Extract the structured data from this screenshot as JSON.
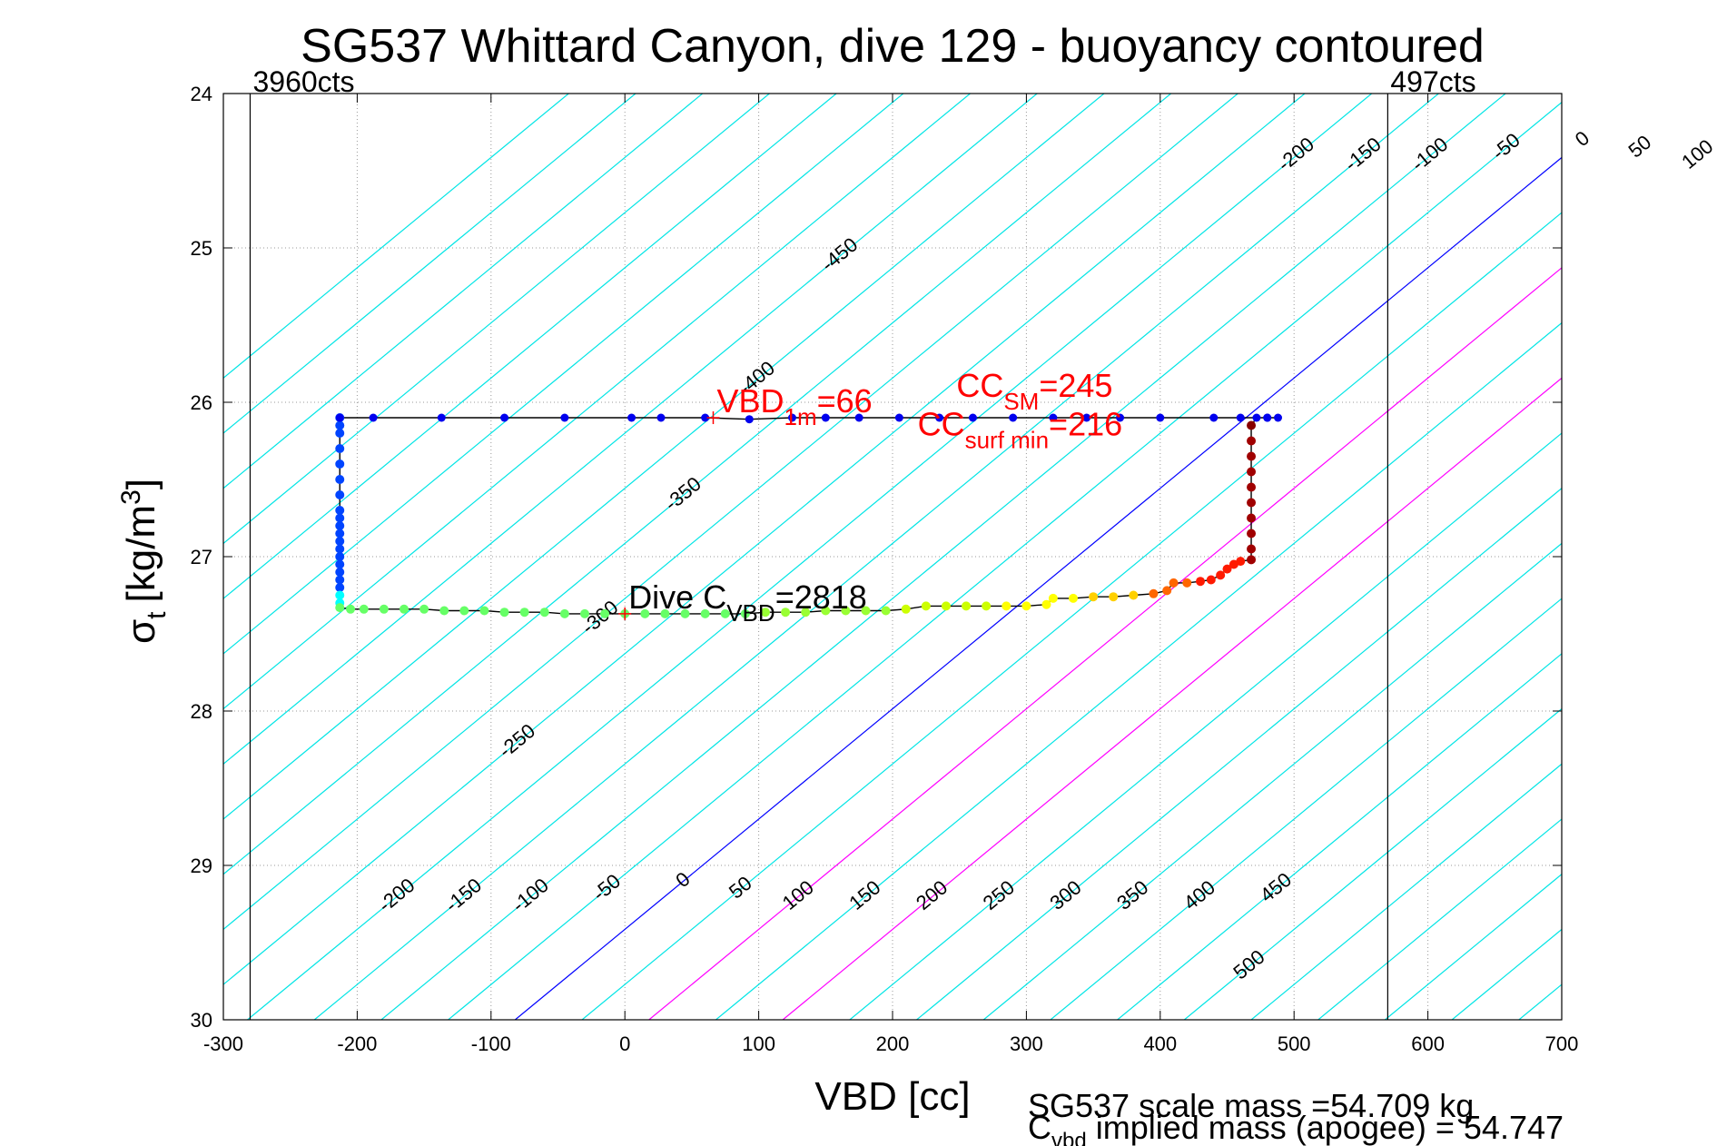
{
  "chart_data": {
    "type": "scatter",
    "title": "SG537 Whittard Canyon, dive 129 - buoyancy contoured",
    "xlabel": "VBD [cc]",
    "ylabel": {
      "sigma": "σ",
      "sub": "t",
      "units": "[kg/m",
      "sup": "3",
      "close": "]"
    },
    "xlim": [
      -300,
      700
    ],
    "ylim": [
      24,
      30
    ],
    "y_reversed": true,
    "grid": true,
    "xticks": [
      -300,
      -200,
      -100,
      0,
      100,
      200,
      300,
      400,
      500,
      600,
      700
    ],
    "yticks": [
      24,
      25,
      26,
      27,
      28,
      29,
      30
    ],
    "vlines": [
      {
        "x": -280,
        "label": "3960cts"
      },
      {
        "x": 570,
        "label": "497cts"
      }
    ],
    "contours": {
      "slope_cc_per_sigma": -140,
      "levels": [
        -450,
        -400,
        -350,
        -300,
        -250,
        -200,
        -150,
        -100,
        -50,
        0,
        50,
        100,
        150,
        200,
        250,
        300,
        350,
        400,
        450,
        500
      ],
      "zero_x_at_sigma30": -82,
      "colors": {
        "default": "#00e5e5",
        "zero": "#0000ff",
        "highlight": "#ff00ff"
      },
      "highlight_levels": [
        100,
        200
      ],
      "top_labels": [
        {
          "level": -200,
          "sigma": 24.4
        },
        {
          "level": -150,
          "sigma": 24.4
        },
        {
          "level": -100,
          "sigma": 24.4
        },
        {
          "level": -50,
          "sigma": 24.35
        },
        {
          "level": 0,
          "sigma": 24.3
        },
        {
          "level": 50,
          "sigma": 24.35
        },
        {
          "level": 100,
          "sigma": 24.4
        },
        {
          "level": 150,
          "sigma": 24.4
        },
        {
          "level": 200,
          "sigma": 24.4
        },
        {
          "level": 250,
          "sigma": 24.4
        },
        {
          "level": 300,
          "sigma": 24.4
        },
        {
          "level": 350,
          "sigma": 24.4
        },
        {
          "level": 400,
          "sigma": 24.4
        },
        {
          "level": 450,
          "sigma": 24.4
        },
        {
          "level": 500,
          "sigma": 24.85
        }
      ],
      "left_labels": [
        {
          "level": -450,
          "sigma": 25.05
        },
        {
          "level": -400,
          "sigma": 25.85
        },
        {
          "level": -350,
          "sigma": 26.6
        },
        {
          "level": -300,
          "sigma": 27.4
        },
        {
          "level": -250,
          "sigma": 28.2
        }
      ],
      "bottom_labels": [
        {
          "level": -200,
          "sigma": 29.2
        },
        {
          "level": -150,
          "sigma": 29.2
        },
        {
          "level": -100,
          "sigma": 29.2
        },
        {
          "level": -50,
          "sigma": 29.15
        },
        {
          "level": 0,
          "sigma": 29.1
        },
        {
          "level": 50,
          "sigma": 29.15
        },
        {
          "level": 100,
          "sigma": 29.2
        },
        {
          "level": 150,
          "sigma": 29.2
        },
        {
          "level": 200,
          "sigma": 29.2
        },
        {
          "level": 250,
          "sigma": 29.2
        },
        {
          "level": 300,
          "sigma": 29.2
        },
        {
          "level": 350,
          "sigma": 29.2
        },
        {
          "level": 400,
          "sigma": 29.2
        },
        {
          "level": 450,
          "sigma": 29.15
        },
        {
          "level": 500,
          "sigma": 29.65
        }
      ]
    },
    "series": [
      {
        "points": [
          [
            -213,
            26.1
          ],
          [
            -213,
            26.15
          ],
          [
            -213,
            26.2
          ],
          [
            -213,
            26.3
          ],
          [
            -213,
            26.4
          ],
          [
            -213,
            26.5
          ],
          [
            -213,
            26.6
          ],
          [
            -213,
            26.7
          ],
          [
            -213,
            26.75
          ],
          [
            -213,
            26.8
          ],
          [
            -213,
            26.85
          ],
          [
            -213,
            26.9
          ],
          [
            -213,
            26.95
          ],
          [
            -213,
            27.0
          ],
          [
            -213,
            27.05
          ],
          [
            -213,
            27.1
          ],
          [
            -213,
            27.15
          ],
          [
            -213,
            27.2
          ],
          [
            -213,
            27.25
          ],
          [
            -213,
            27.3
          ],
          [
            -213,
            27.33
          ],
          [
            -205,
            27.34
          ],
          [
            -195,
            27.34
          ],
          [
            -180,
            27.34
          ],
          [
            -165,
            27.34
          ],
          [
            -150,
            27.34
          ],
          [
            -135,
            27.35
          ],
          [
            -120,
            27.35
          ],
          [
            -105,
            27.35
          ],
          [
            -90,
            27.36
          ],
          [
            -75,
            27.36
          ],
          [
            -60,
            27.36
          ],
          [
            -45,
            27.37
          ],
          [
            -30,
            27.37
          ],
          [
            -15,
            27.37
          ],
          [
            0,
            27.37
          ],
          [
            15,
            27.37
          ],
          [
            30,
            27.37
          ],
          [
            45,
            27.37
          ],
          [
            60,
            27.37
          ],
          [
            75,
            27.37
          ],
          [
            90,
            27.37
          ],
          [
            105,
            27.36
          ],
          [
            120,
            27.36
          ],
          [
            135,
            27.36
          ],
          [
            150,
            27.35
          ],
          [
            165,
            27.35
          ],
          [
            180,
            27.35
          ],
          [
            195,
            27.35
          ],
          [
            210,
            27.34
          ],
          [
            225,
            27.32
          ],
          [
            240,
            27.32
          ],
          [
            255,
            27.32
          ],
          [
            270,
            27.32
          ],
          [
            285,
            27.32
          ],
          [
            300,
            27.32
          ],
          [
            315,
            27.31
          ],
          [
            320,
            27.27
          ],
          [
            335,
            27.27
          ],
          [
            350,
            27.26
          ],
          [
            365,
            27.26
          ],
          [
            380,
            27.25
          ],
          [
            395,
            27.24
          ],
          [
            405,
            27.22
          ],
          [
            410,
            27.17
          ],
          [
            420,
            27.17
          ],
          [
            430,
            27.16
          ],
          [
            438,
            27.15
          ],
          [
            445,
            27.12
          ],
          [
            450,
            27.08
          ],
          [
            455,
            27.05
          ],
          [
            460,
            27.03
          ],
          [
            468,
            27.02
          ],
          [
            468,
            26.95
          ],
          [
            468,
            26.85
          ],
          [
            468,
            26.75
          ],
          [
            468,
            26.65
          ],
          [
            468,
            26.55
          ],
          [
            468,
            26.45
          ],
          [
            468,
            26.35
          ],
          [
            468,
            26.25
          ],
          [
            468,
            26.15
          ],
          [
            472,
            26.1
          ],
          [
            480,
            26.1
          ],
          [
            488,
            26.1
          ],
          [
            480,
            26.1
          ],
          [
            460,
            26.1
          ],
          [
            440,
            26.1
          ],
          [
            400,
            26.1
          ],
          [
            370,
            26.1
          ],
          [
            345,
            26.1
          ],
          [
            320,
            26.1
          ],
          [
            290,
            26.1
          ],
          [
            260,
            26.1
          ],
          [
            235,
            26.1
          ],
          [
            205,
            26.1
          ],
          [
            175,
            26.1
          ],
          [
            150,
            26.1
          ],
          [
            125,
            26.1
          ],
          [
            93,
            26.11
          ],
          [
            60,
            26.1
          ],
          [
            27,
            26.1
          ],
          [
            5,
            26.1
          ],
          [
            -45,
            26.1
          ],
          [
            -90,
            26.1
          ],
          [
            -137,
            26.1
          ],
          [
            -188,
            26.1
          ],
          [
            -213,
            26.1
          ]
        ]
      }
    ],
    "annotations": [
      {
        "text": "VBD",
        "sub": "1m",
        "tail": "=66",
        "x": 66,
        "y": 26.1,
        "color": "#ff0000",
        "marker": true
      },
      {
        "text": "CC",
        "sub": "SM",
        "tail": "=245",
        "x": 245,
        "y": 26.0,
        "color": "#ff0000"
      },
      {
        "text": "CC",
        "sub": "surf min",
        "tail": "=216",
        "x": 216,
        "y": 26.25,
        "color": "#ff0000"
      },
      {
        "text": "Dive C",
        "sub": "VBD",
        "tail": "=2818",
        "x": 0,
        "y": 27.37,
        "color": "#000000",
        "marker": true
      }
    ],
    "footer": {
      "line1": "SG537 scale mass =54.709 kg",
      "line2_main": "C",
      "line2_sub": "vbd",
      "line2_tail": " implied mass (apogee) = 54.747"
    }
  }
}
